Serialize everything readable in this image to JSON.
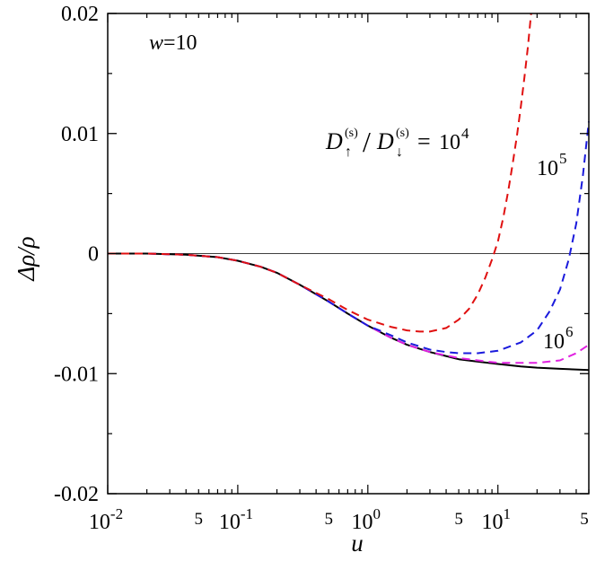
{
  "chart_data": {
    "type": "line",
    "xlabel": "u",
    "ylabel": "Δρ/ρ",
    "x_scale": "log",
    "xlim": [
      0.01,
      50
    ],
    "ylim": [
      -0.02,
      0.02
    ],
    "grid": false,
    "legend": "none",
    "y_ticks": [
      {
        "value": 0.02,
        "label": "0.02"
      },
      {
        "value": 0.01,
        "label": "0.01"
      },
      {
        "value": 0,
        "label": "0"
      },
      {
        "value": -0.01,
        "label": "-0.01"
      },
      {
        "value": -0.02,
        "label": "-0.02"
      }
    ],
    "x_major_ticks": [
      {
        "value": 0.01,
        "base": "10",
        "exp": "-2"
      },
      {
        "value": 0.1,
        "base": "10",
        "exp": "-1"
      },
      {
        "value": 1,
        "base": "10",
        "exp": "0"
      },
      {
        "value": 10,
        "base": "10",
        "exp": "1"
      }
    ],
    "x_minor_labels": [
      {
        "value": 0.05,
        "label": "5"
      },
      {
        "value": 0.5,
        "label": "5"
      },
      {
        "value": 5,
        "label": "5"
      },
      {
        "value": 50,
        "label": "5"
      }
    ],
    "reference_line": {
      "y": 0,
      "color": "#000000"
    },
    "series": [
      {
        "key": "black",
        "color": "#000000",
        "style": "solid",
        "x": [
          0.01,
          0.02,
          0.04,
          0.07,
          0.1,
          0.15,
          0.2,
          0.3,
          0.5,
          0.7,
          1,
          1.5,
          2,
          3,
          5,
          7,
          10,
          15,
          20,
          30,
          50
        ],
        "y": [
          0.0,
          0.0,
          -0.0001,
          -0.0003,
          -0.0006,
          -0.0011,
          -0.0016,
          -0.0026,
          -0.004,
          -0.005,
          -0.006,
          -0.007,
          -0.0076,
          -0.0082,
          -0.0088,
          -0.009,
          -0.0092,
          -0.0094,
          -0.0095,
          -0.0096,
          -0.0097
        ]
      },
      {
        "key": "magenta",
        "color": "#e020e0",
        "style": "dashed",
        "x": [
          0.01,
          0.02,
          0.04,
          0.07,
          0.1,
          0.15,
          0.2,
          0.3,
          0.5,
          0.7,
          1,
          1.5,
          2,
          3,
          5,
          7,
          10,
          15,
          20,
          30,
          40,
          50
        ],
        "y": [
          0.0,
          0.0,
          -0.0001,
          -0.0003,
          -0.0006,
          -0.0011,
          -0.0016,
          -0.0026,
          -0.004,
          -0.005,
          -0.006,
          -0.007,
          -0.0076,
          -0.0082,
          -0.0087,
          -0.0089,
          -0.0091,
          -0.0091,
          -0.0091,
          -0.0089,
          -0.0083,
          -0.0076
        ]
      },
      {
        "key": "blue",
        "color": "#1a1adc",
        "style": "dashed",
        "x": [
          0.01,
          0.02,
          0.04,
          0.07,
          0.1,
          0.15,
          0.2,
          0.3,
          0.5,
          0.7,
          1,
          1.5,
          2,
          3,
          4,
          5,
          7,
          10,
          15,
          20,
          25,
          30,
          35,
          40,
          45,
          50
        ],
        "y": [
          0.0,
          0.0,
          -0.0001,
          -0.0003,
          -0.0006,
          -0.0011,
          -0.0016,
          -0.0026,
          -0.004,
          -0.005,
          -0.006,
          -0.0068,
          -0.0074,
          -0.008,
          -0.0082,
          -0.0083,
          -0.0083,
          -0.0081,
          -0.0074,
          -0.0064,
          -0.0048,
          -0.003,
          -0.0005,
          0.0025,
          0.0065,
          0.011
        ]
      },
      {
        "key": "red",
        "color": "#e01010",
        "style": "dashed",
        "x": [
          0.01,
          0.02,
          0.04,
          0.07,
          0.1,
          0.15,
          0.2,
          0.3,
          0.5,
          0.7,
          1,
          1.5,
          2,
          2.5,
          3,
          4,
          5,
          6,
          7,
          8,
          9,
          10,
          11,
          12,
          13,
          14,
          15,
          16,
          17,
          18
        ],
        "y": [
          0.0,
          0.0,
          -0.0001,
          -0.0003,
          -0.0006,
          -0.0011,
          -0.0016,
          -0.0026,
          -0.0038,
          -0.0047,
          -0.0055,
          -0.0061,
          -0.0064,
          -0.0065,
          -0.0065,
          -0.0062,
          -0.0055,
          -0.0046,
          -0.0034,
          -0.002,
          -0.0005,
          0.001,
          0.003,
          0.0052,
          0.0075,
          0.0098,
          0.0122,
          0.0147,
          0.0172,
          0.02
        ]
      }
    ],
    "annotations": [
      {
        "key": "w",
        "var": "w",
        "text": "=10"
      },
      {
        "key": "ratio",
        "base": "10",
        "exp": "4"
      },
      {
        "key": "lbl1e5",
        "base": "10",
        "exp": "5"
      },
      {
        "key": "lbl1e6",
        "base": "10",
        "exp": "6"
      }
    ]
  }
}
